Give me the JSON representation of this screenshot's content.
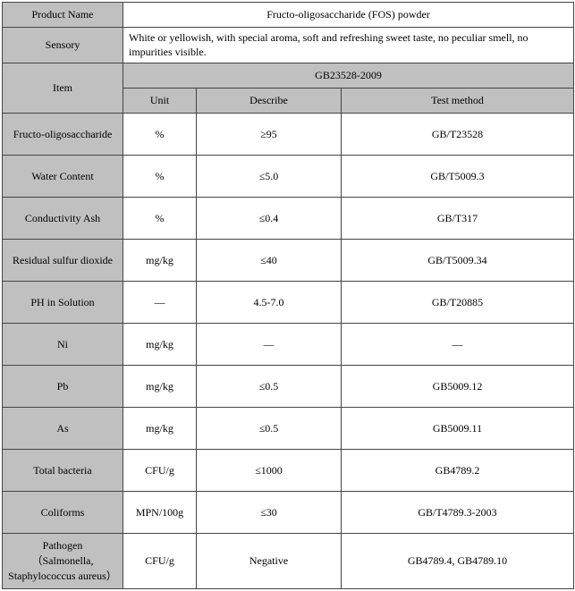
{
  "header": {
    "product_name_label": "Product Name",
    "product_name_value": "Fructo-oligosaccharide (FOS) powder",
    "sensory_label": "Sensory",
    "sensory_value": "White or yellowish, with special aroma, soft and refreshing sweet taste, no peculiar smell, no impurities visible.",
    "item_label": "Item",
    "standard_label": "GB23528-2009",
    "unit_label": "Unit",
    "describe_label": "Describe",
    "test_method_label": "Test method"
  },
  "rows": [
    {
      "item": "Fructo-oligosaccharide",
      "unit": "%",
      "describe": "≥95",
      "method": "GB/T23528"
    },
    {
      "item": "Water Content",
      "unit": "%",
      "describe": "≤5.0",
      "method": "GB/T5009.3"
    },
    {
      "item": "Conductivity Ash",
      "unit": "%",
      "describe": "≤0.4",
      "method": "GB/T317"
    },
    {
      "item": "Residual sulfur dioxide",
      "unit": "mg/kg",
      "describe": "≤40",
      "method": "GB/T5009.34"
    },
    {
      "item": "PH in Solution",
      "unit": "—",
      "describe": "4.5-7.0",
      "method": "GB/T20885"
    },
    {
      "item": "Ni",
      "unit": "mg/kg",
      "describe": "—",
      "method": "—"
    },
    {
      "item": "Pb",
      "unit": "mg/kg",
      "describe": "≤0.5",
      "method": "GB5009.12"
    },
    {
      "item": "As",
      "unit": "mg/kg",
      "describe": "≤0.5",
      "method": "GB5009.11"
    },
    {
      "item": "Total bacteria",
      "unit": "CFU/g",
      "describe": "≤1000",
      "method": "GB4789.2"
    },
    {
      "item": "Coliforms",
      "unit": "MPN/100g",
      "describe": "≤30",
      "method": "GB/T4789.3-2003"
    },
    {
      "item": "Pathogen\n（Salmonella, Staphylococcus aureus）",
      "unit": "CFU/g",
      "describe": "Negative",
      "method": "GB4789.4, GB4789.10"
    }
  ],
  "style": {
    "header_bg": "#c0c0c0",
    "border_color": "#444444",
    "font_family": "Times New Roman",
    "base_font_size": 12
  }
}
